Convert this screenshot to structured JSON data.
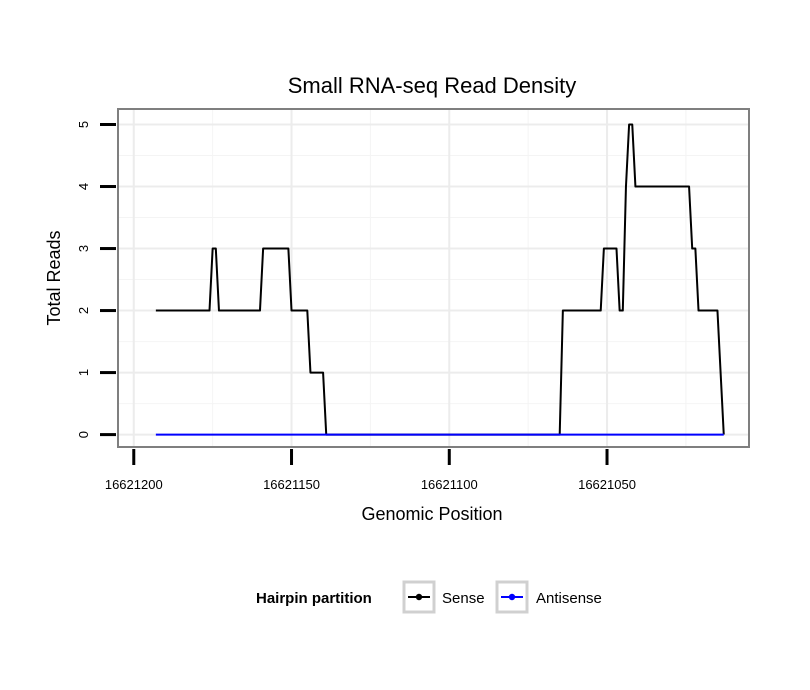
{
  "chart_data": {
    "type": "line",
    "title": "Small RNA-seq Read Density",
    "xlabel": "Genomic Position",
    "ylabel": "Total Reads",
    "x_reversed": true,
    "xlim": [
      16621205,
      16621005
    ],
    "ylim": [
      -0.2,
      5.25
    ],
    "x_ticks": [
      16621200,
      16621150,
      16621100,
      16621050
    ],
    "x_tick_labels": [
      "16621200",
      "16621150",
      "16621100",
      "16621050"
    ],
    "y_ticks": [
      0,
      1,
      2,
      3,
      4,
      5
    ],
    "y_tick_labels": [
      "0",
      "1",
      "2",
      "3",
      "4",
      "5"
    ],
    "grid": true,
    "legend": {
      "title": "Hairpin partition",
      "position": "bottom"
    },
    "series": [
      {
        "name": "Sense",
        "color": "#000000",
        "x": [
          16621193,
          16621176,
          16621175,
          16621174,
          16621173,
          16621160,
          16621159,
          16621151,
          16621150,
          16621145,
          16621144,
          16621140,
          16621139,
          16621134,
          16621133,
          16621065,
          16621064,
          16621052,
          16621051,
          16621047,
          16621046,
          16621045,
          16621044,
          16621043,
          16621042,
          16621041,
          16621040,
          16621038,
          16621037,
          16621024,
          16621023,
          16621022,
          16621021,
          16621016,
          16621015,
          16621013
        ],
        "values": [
          2,
          2,
          3,
          3,
          2,
          2,
          3,
          3,
          2,
          2,
          1,
          1,
          0,
          0,
          0,
          0,
          2,
          2,
          3,
          3,
          2,
          2,
          4,
          5,
          5,
          4,
          4,
          4,
          4,
          4,
          3,
          3,
          2,
          2,
          2,
          0
        ]
      },
      {
        "name": "Antisense",
        "color": "#0000ff",
        "x": [
          16621193,
          16621013
        ],
        "values": [
          0,
          0
        ]
      }
    ]
  }
}
